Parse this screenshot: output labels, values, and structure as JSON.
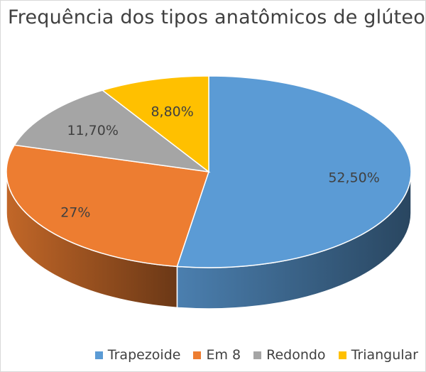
{
  "chart_data": {
    "type": "pie",
    "title": "Frequência dos tipos anatômicos de glúteos",
    "slices": [
      {
        "name": "Trapezoide",
        "value": 52.5,
        "label": "52,50%",
        "color": "#5B9BD5"
      },
      {
        "name": "Em 8",
        "value": 27.0,
        "label": "27%",
        "color": "#ED7D31"
      },
      {
        "name": "Redondo",
        "value": 11.7,
        "label": "11,70%",
        "color": "#A5A5A5"
      },
      {
        "name": "Triangular",
        "value": 8.8,
        "label": "8,80%",
        "color": "#FFC000"
      }
    ],
    "legend_position": "bottom-right",
    "style": "3d-pie"
  }
}
